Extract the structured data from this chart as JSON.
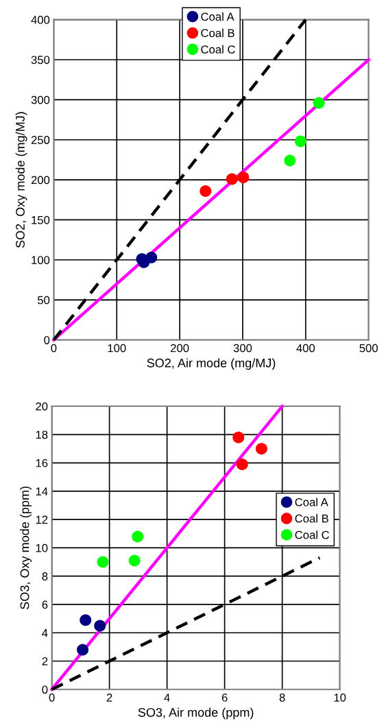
{
  "chart_data": [
    {
      "type": "scatter",
      "xlabel": "SO2, Air mode (mg/MJ)",
      "ylabel": "SO2, Oxy mode (mg/MJ)",
      "xlim": [
        0,
        500
      ],
      "ylim": [
        0,
        400
      ],
      "xticks": [
        0,
        100,
        200,
        300,
        400,
        500
      ],
      "yticks": [
        0,
        50,
        100,
        150,
        200,
        250,
        300,
        350,
        400
      ],
      "grid": true,
      "legend": "top",
      "marker": "circle",
      "series": [
        {
          "name": "Coal A",
          "color": "#000080",
          "x": [
            140,
            143,
            155
          ],
          "values": [
            101,
            97,
            103
          ]
        },
        {
          "name": "Coal B",
          "color": "#ff0000",
          "x": [
            241,
            283,
            301
          ],
          "values": [
            186,
            201,
            203
          ]
        },
        {
          "name": "Coal C",
          "color": "#00ff00",
          "x": [
            375,
            392,
            421
          ],
          "values": [
            224,
            248,
            296
          ]
        },
        {
          "type": "line",
          "marker": "none",
          "color": "#ff00ff",
          "line_style": "solid",
          "x": [
            0,
            500
          ],
          "values": [
            0,
            350
          ]
        },
        {
          "type": "line",
          "marker": "none",
          "color": "#000000",
          "line_style": "dashed",
          "x": [
            0,
            400
          ],
          "values": [
            0,
            400
          ]
        }
      ]
    },
    {
      "type": "scatter",
      "xlabel": "SO3, Air mode (ppm)",
      "ylabel": "SO3, Oxy mode (ppm)",
      "xlim": [
        0,
        10
      ],
      "ylim": [
        0,
        20
      ],
      "xticks": [
        0,
        2,
        4,
        6,
        8,
        10
      ],
      "yticks": [
        0,
        2,
        4,
        6,
        8,
        10,
        12,
        14,
        16,
        18,
        20
      ],
      "grid": true,
      "legend": "right",
      "marker": "circle",
      "series": [
        {
          "name": "Coal A",
          "color": "#000080",
          "x": [
            1.07,
            1.17,
            1.67
          ],
          "values": [
            2.8,
            4.9,
            4.5
          ]
        },
        {
          "name": "Coal B",
          "color": "#ff0000",
          "x": [
            6.48,
            6.61,
            7.28
          ],
          "values": [
            17.8,
            15.9,
            17.0
          ]
        },
        {
          "name": "Coal C",
          "color": "#00ff00",
          "x": [
            1.77,
            2.87,
            2.98
          ],
          "values": [
            9.0,
            9.1,
            10.8
          ]
        },
        {
          "type": "line",
          "marker": "none",
          "color": "#ff00ff",
          "line_style": "solid",
          "x": [
            0,
            8
          ],
          "values": [
            0,
            20
          ]
        },
        {
          "type": "line",
          "marker": "none",
          "color": "#000000",
          "line_style": "dashed",
          "x": [
            0,
            9.3
          ],
          "values": [
            0,
            9.3
          ]
        }
      ]
    }
  ]
}
